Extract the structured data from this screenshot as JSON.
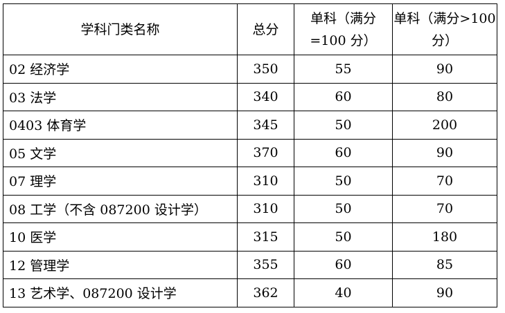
{
  "headers": [
    "学科门类名称",
    "总分",
    "单科（满分=100 分）",
    "单科（满分>100 分）"
  ],
  "rows": [
    {
      "name": "02 经济学",
      "total": "350",
      "single_100": "55",
      "single_over_100": "90"
    },
    {
      "name": "03 法学",
      "total": "340",
      "single_100": "60",
      "single_over_100": "80"
    },
    {
      "name": "0403 体育学",
      "total": "345",
      "single_100": "50",
      "single_over_100": "200"
    },
    {
      "name": "05 文学",
      "total": "370",
      "single_100": "60",
      "single_over_100": "90"
    },
    {
      "name": "07 理学",
      "total": "310",
      "single_100": "50",
      "single_over_100": "70"
    },
    {
      "name": "08 工学（不含 087200 设计学）",
      "total": "310",
      "single_100": "50",
      "single_over_100": "70"
    },
    {
      "name": "10 医学",
      "total": "315",
      "single_100": "50",
      "single_over_100": "180"
    },
    {
      "name": "12 管理学",
      "total": "355",
      "single_100": "60",
      "single_over_100": "85"
    },
    {
      "name": "13 艺术学、087200 设计学",
      "total": "362",
      "single_100": "40",
      "single_over_100": "90"
    }
  ]
}
